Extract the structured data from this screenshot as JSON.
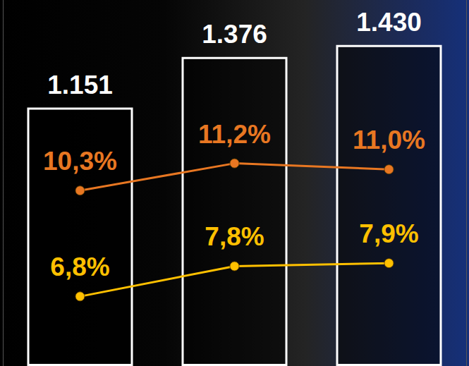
{
  "chart_data": {
    "type": "bar",
    "categories": [
      null,
      null,
      null
    ],
    "ylim": [
      0,
      1630
    ],
    "y2lim": [
      4.5,
      16.6
    ],
    "grid": false,
    "tick_labels": false,
    "data_labels": true,
    "series": [
      {
        "type": "bar",
        "color": "#ffffff",
        "values": [
          1151,
          1376,
          1430
        ],
        "value_labels": [
          "1.151",
          "1.376",
          "1.430"
        ]
      },
      {
        "type": "line",
        "axis": "y2",
        "color": "#e87722",
        "marker": "circle",
        "line_style": "solid",
        "values": [
          10.3,
          11.2,
          11.0
        ],
        "value_labels": [
          "10,3%",
          "11,2%",
          "11,0%"
        ]
      },
      {
        "type": "line",
        "axis": "y2",
        "color": "#ffc000",
        "marker": "circle",
        "line_style": "solid",
        "values": [
          6.8,
          7.8,
          7.9
        ],
        "value_labels": [
          "6,8%",
          "7,8%",
          "7,9%"
        ]
      }
    ]
  }
}
